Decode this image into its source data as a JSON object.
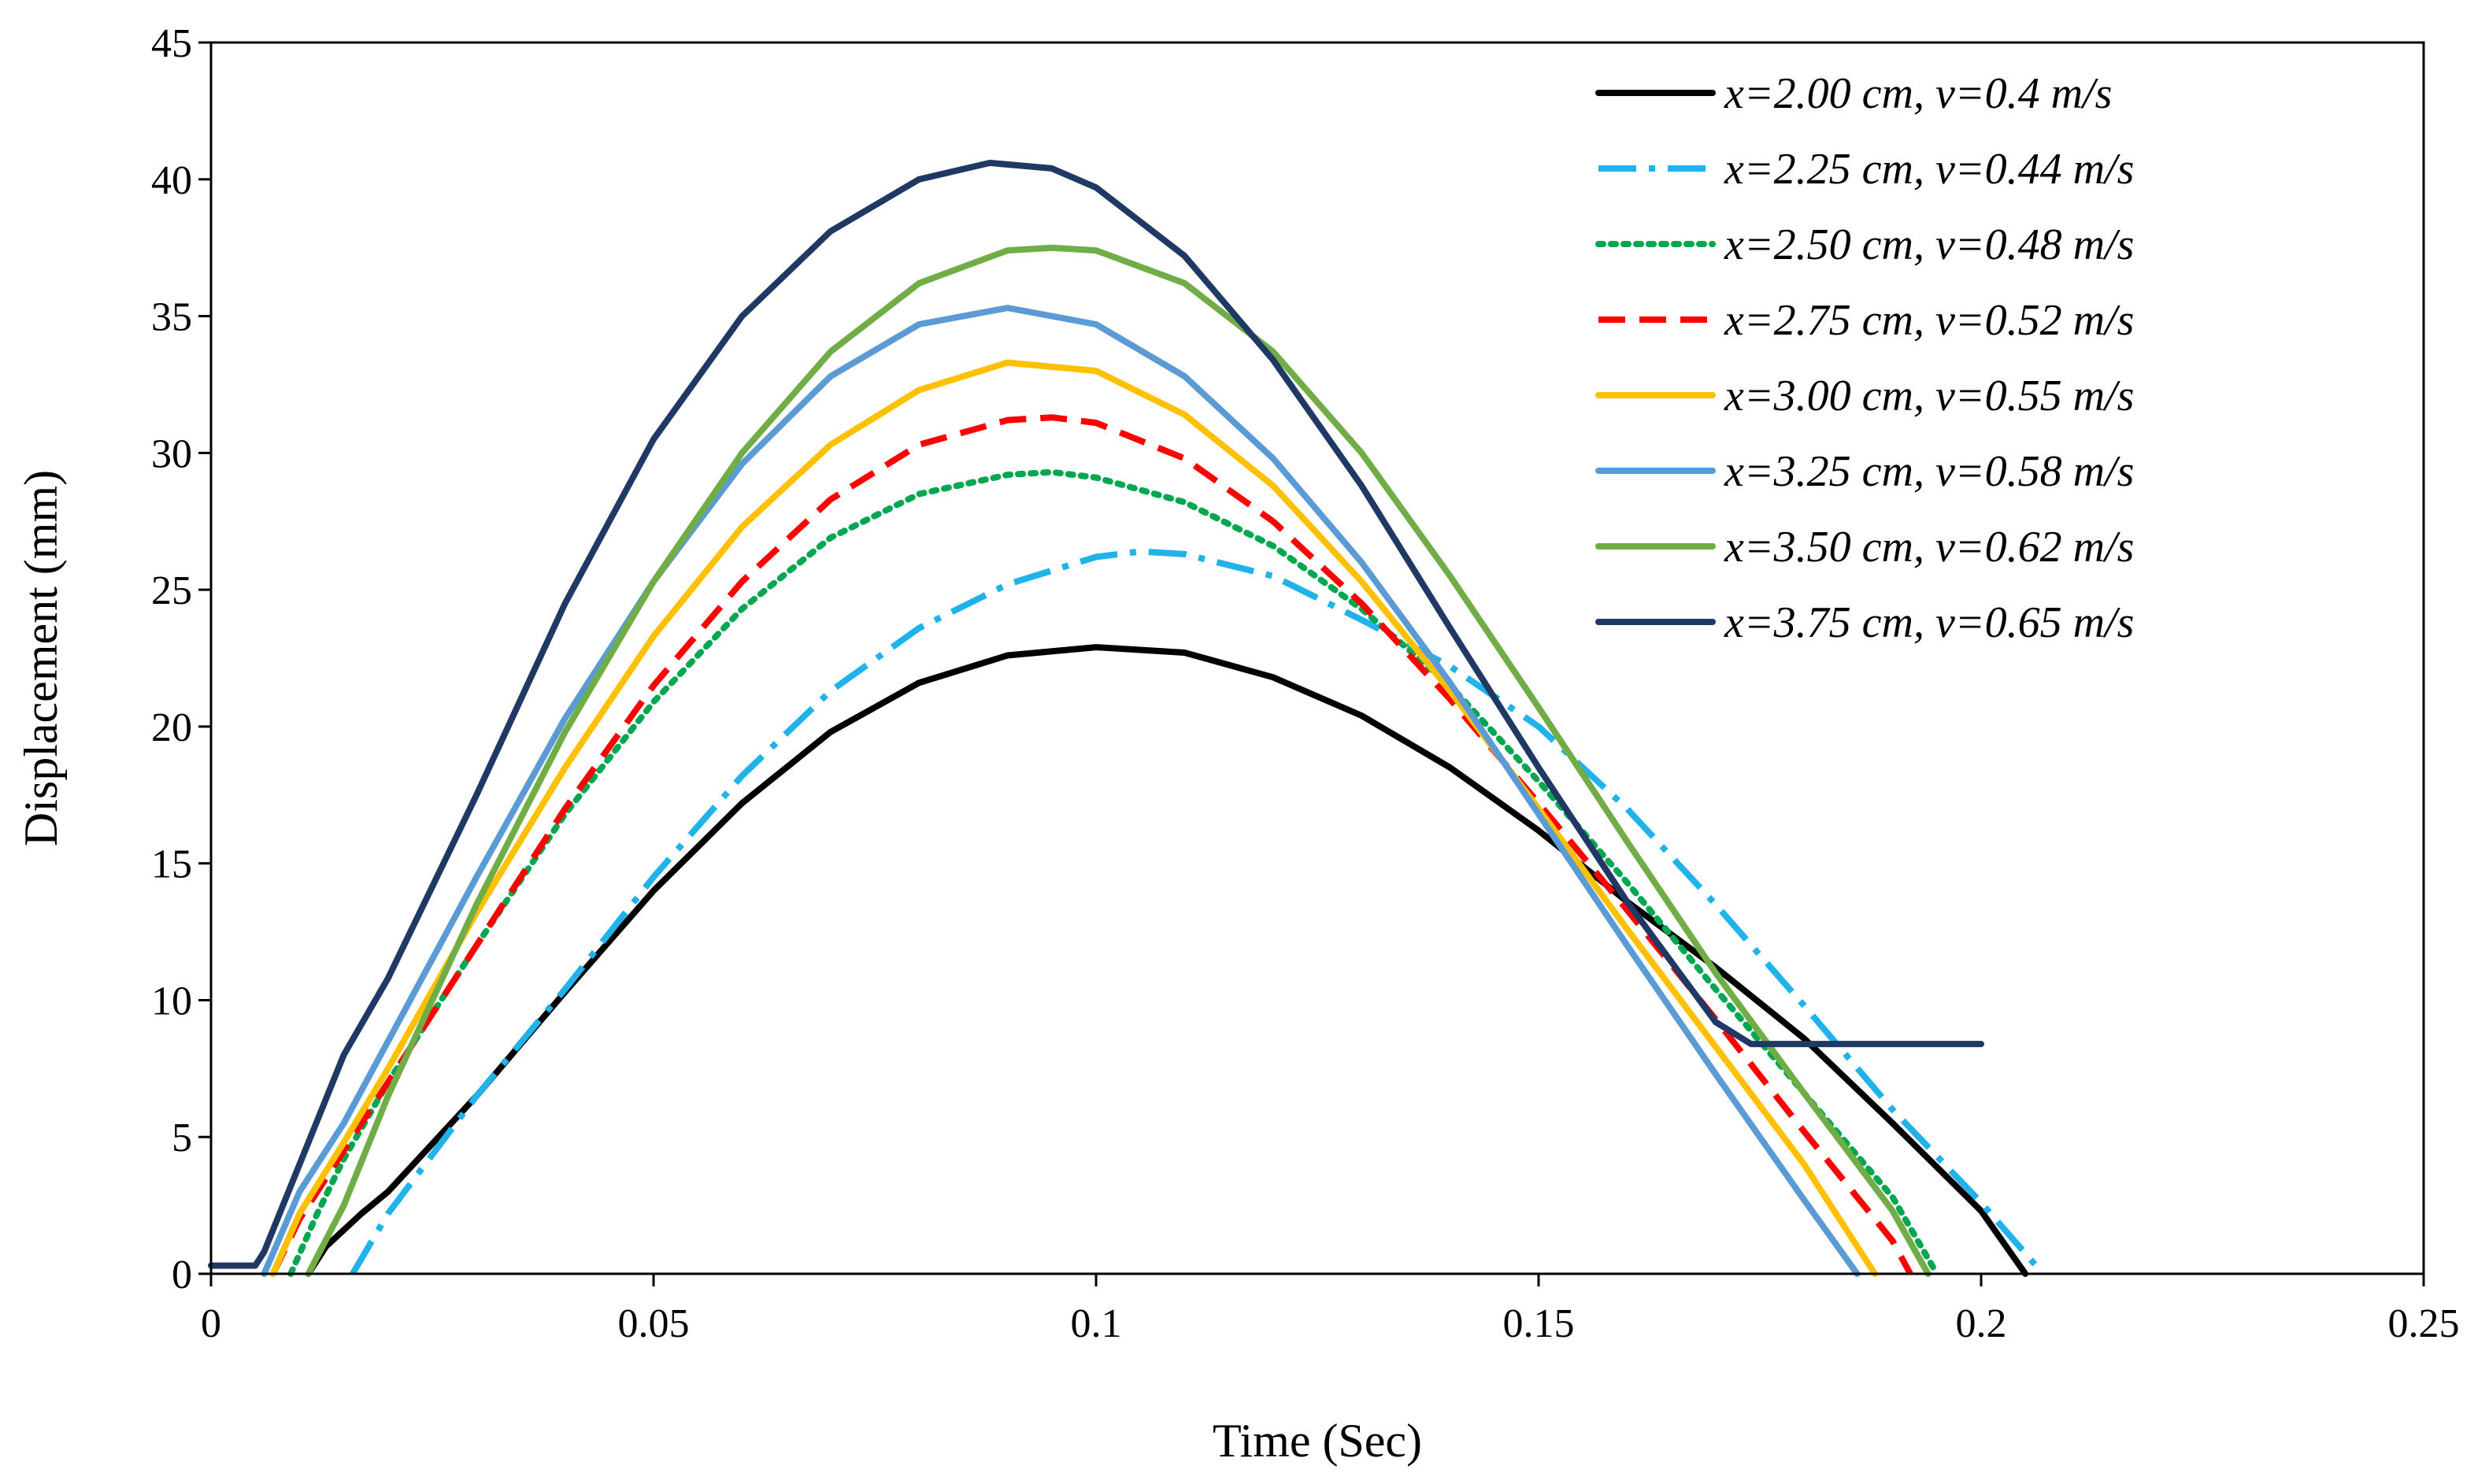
{
  "chart_data": {
    "type": "line",
    "title": "",
    "xlabel": "Time (Sec)",
    "ylabel": "Displacement (mm)",
    "xlim": [
      0,
      0.25
    ],
    "ylim": [
      0,
      45
    ],
    "x_ticks": [
      0,
      0.05,
      0.1,
      0.15,
      0.2,
      0.25
    ],
    "x_tick_labels": [
      "0",
      "0.05",
      "0.1",
      "0.15",
      "0.2",
      "0.25"
    ],
    "y_ticks": [
      0,
      5,
      10,
      15,
      20,
      25,
      30,
      35,
      40,
      45
    ],
    "y_tick_labels": [
      "0",
      "5",
      "10",
      "15",
      "20",
      "25",
      "30",
      "35",
      "40",
      "45"
    ],
    "grid": false,
    "legend_position": "top-right",
    "series": [
      {
        "name": "x=2.00 cm, v=0.4 m/s",
        "color": "#000000",
        "dash": "solid",
        "points": [
          [
            0.011,
            0
          ],
          [
            0.013,
            1.0
          ],
          [
            0.017,
            2.2
          ],
          [
            0.02,
            3.0
          ],
          [
            0.03,
            6.5
          ],
          [
            0.04,
            10.3
          ],
          [
            0.05,
            14.0
          ],
          [
            0.06,
            17.2
          ],
          [
            0.07,
            19.8
          ],
          [
            0.08,
            21.6
          ],
          [
            0.09,
            22.6
          ],
          [
            0.1,
            22.9
          ],
          [
            0.11,
            22.7
          ],
          [
            0.12,
            21.8
          ],
          [
            0.13,
            20.4
          ],
          [
            0.14,
            18.5
          ],
          [
            0.15,
            16.2
          ],
          [
            0.16,
            13.6
          ],
          [
            0.17,
            11.2
          ],
          [
            0.18,
            8.6
          ],
          [
            0.19,
            5.5
          ],
          [
            0.2,
            2.3
          ],
          [
            0.205,
            0
          ]
        ]
      },
      {
        "name": "x=2.25 cm, v=0.44 m/s",
        "color": "#1fb2eb",
        "dash": "dashdot",
        "points": [
          [
            0.016,
            0
          ],
          [
            0.02,
            2.2
          ],
          [
            0.03,
            6.5
          ],
          [
            0.04,
            10.4
          ],
          [
            0.05,
            14.5
          ],
          [
            0.06,
            18.2
          ],
          [
            0.07,
            21.3
          ],
          [
            0.08,
            23.6
          ],
          [
            0.09,
            25.2
          ],
          [
            0.1,
            26.2
          ],
          [
            0.105,
            26.4
          ],
          [
            0.11,
            26.3
          ],
          [
            0.12,
            25.5
          ],
          [
            0.13,
            23.9
          ],
          [
            0.14,
            22.2
          ],
          [
            0.15,
            20.0
          ],
          [
            0.16,
            17.0
          ],
          [
            0.17,
            13.5
          ],
          [
            0.18,
            9.8
          ],
          [
            0.19,
            6.0
          ],
          [
            0.2,
            2.6
          ],
          [
            0.207,
            0
          ]
        ]
      },
      {
        "name": "x=2.50 cm, v=0.48 m/s",
        "color": "#00a650",
        "dash": "dotted",
        "points": [
          [
            0.009,
            0
          ],
          [
            0.012,
            2.2
          ],
          [
            0.015,
            4.2
          ],
          [
            0.02,
            7.0
          ],
          [
            0.03,
            12.0
          ],
          [
            0.04,
            16.8
          ],
          [
            0.05,
            20.9
          ],
          [
            0.06,
            24.3
          ],
          [
            0.07,
            26.9
          ],
          [
            0.08,
            28.5
          ],
          [
            0.09,
            29.2
          ],
          [
            0.095,
            29.3
          ],
          [
            0.1,
            29.1
          ],
          [
            0.11,
            28.2
          ],
          [
            0.12,
            26.6
          ],
          [
            0.13,
            24.3
          ],
          [
            0.14,
            21.5
          ],
          [
            0.15,
            18.0
          ],
          [
            0.16,
            14.3
          ],
          [
            0.17,
            10.4
          ],
          [
            0.18,
            6.6
          ],
          [
            0.19,
            2.8
          ],
          [
            0.195,
            0
          ]
        ]
      },
      {
        "name": "x=2.75 cm, v=0.52 m/s",
        "color": "#ff0000",
        "dash": "dashed",
        "points": [
          [
            0.007,
            0
          ],
          [
            0.01,
            2.0
          ],
          [
            0.015,
            4.5
          ],
          [
            0.02,
            7.0
          ],
          [
            0.03,
            12.0
          ],
          [
            0.04,
            17.0
          ],
          [
            0.05,
            21.5
          ],
          [
            0.06,
            25.3
          ],
          [
            0.07,
            28.3
          ],
          [
            0.08,
            30.3
          ],
          [
            0.09,
            31.2
          ],
          [
            0.095,
            31.3
          ],
          [
            0.1,
            31.1
          ],
          [
            0.11,
            29.8
          ],
          [
            0.12,
            27.5
          ],
          [
            0.13,
            24.5
          ],
          [
            0.14,
            21.0
          ],
          [
            0.15,
            17.2
          ],
          [
            0.16,
            13.3
          ],
          [
            0.17,
            9.3
          ],
          [
            0.18,
            5.2
          ],
          [
            0.19,
            1.2
          ],
          [
            0.192,
            0
          ]
        ]
      },
      {
        "name": "x=3.00 cm, v=0.55 m/s",
        "color": "#ffc000",
        "dash": "solid",
        "points": [
          [
            0.007,
            0
          ],
          [
            0.01,
            2.2
          ],
          [
            0.015,
            4.8
          ],
          [
            0.02,
            7.5
          ],
          [
            0.03,
            13.2
          ],
          [
            0.04,
            18.5
          ],
          [
            0.05,
            23.3
          ],
          [
            0.06,
            27.3
          ],
          [
            0.07,
            30.3
          ],
          [
            0.08,
            32.3
          ],
          [
            0.09,
            33.3
          ],
          [
            0.1,
            33.0
          ],
          [
            0.11,
            31.4
          ],
          [
            0.12,
            28.8
          ],
          [
            0.13,
            25.3
          ],
          [
            0.14,
            21.3
          ],
          [
            0.15,
            17.0
          ],
          [
            0.16,
            12.6
          ],
          [
            0.17,
            8.3
          ],
          [
            0.18,
            4.0
          ],
          [
            0.188,
            0
          ]
        ]
      },
      {
        "name": "x=3.25 cm, v=0.58 m/s",
        "color": "#5b9bd5",
        "dash": "solid",
        "points": [
          [
            0.006,
            0
          ],
          [
            0.01,
            3.0
          ],
          [
            0.015,
            5.5
          ],
          [
            0.02,
            8.5
          ],
          [
            0.03,
            14.5
          ],
          [
            0.04,
            20.3
          ],
          [
            0.05,
            25.3
          ],
          [
            0.06,
            29.6
          ],
          [
            0.07,
            32.8
          ],
          [
            0.08,
            34.7
          ],
          [
            0.09,
            35.3
          ],
          [
            0.1,
            34.7
          ],
          [
            0.11,
            32.8
          ],
          [
            0.12,
            29.8
          ],
          [
            0.13,
            26.0
          ],
          [
            0.14,
            21.6
          ],
          [
            0.15,
            16.8
          ],
          [
            0.16,
            12.0
          ],
          [
            0.17,
            7.3
          ],
          [
            0.18,
            2.7
          ],
          [
            0.186,
            0
          ]
        ]
      },
      {
        "name": "x=3.50 cm, v=0.62 m/s",
        "color": "#70ad47",
        "dash": "solid",
        "points": [
          [
            0.011,
            0
          ],
          [
            0.015,
            2.5
          ],
          [
            0.02,
            6.5
          ],
          [
            0.03,
            13.5
          ],
          [
            0.04,
            19.8
          ],
          [
            0.05,
            25.3
          ],
          [
            0.06,
            30.0
          ],
          [
            0.07,
            33.7
          ],
          [
            0.08,
            36.2
          ],
          [
            0.09,
            37.4
          ],
          [
            0.095,
            37.5
          ],
          [
            0.1,
            37.4
          ],
          [
            0.11,
            36.2
          ],
          [
            0.12,
            33.7
          ],
          [
            0.13,
            30.0
          ],
          [
            0.14,
            25.5
          ],
          [
            0.15,
            20.7
          ],
          [
            0.16,
            15.8
          ],
          [
            0.17,
            11.0
          ],
          [
            0.18,
            6.6
          ],
          [
            0.19,
            2.3
          ],
          [
            0.194,
            0
          ]
        ]
      },
      {
        "name": "x=3.75 cm, v=0.65 m/s",
        "color": "#203864",
        "dash": "solid",
        "points": [
          [
            0,
            0.3
          ],
          [
            0.005,
            0.3
          ],
          [
            0.006,
            0.8
          ],
          [
            0.01,
            4.0
          ],
          [
            0.015,
            8.0
          ],
          [
            0.02,
            10.8
          ],
          [
            0.03,
            17.5
          ],
          [
            0.04,
            24.5
          ],
          [
            0.05,
            30.5
          ],
          [
            0.06,
            35.0
          ],
          [
            0.07,
            38.1
          ],
          [
            0.08,
            40.0
          ],
          [
            0.088,
            40.6
          ],
          [
            0.095,
            40.4
          ],
          [
            0.1,
            39.7
          ],
          [
            0.11,
            37.2
          ],
          [
            0.12,
            33.4
          ],
          [
            0.13,
            28.8
          ],
          [
            0.14,
            23.6
          ],
          [
            0.15,
            18.5
          ],
          [
            0.16,
            13.6
          ],
          [
            0.17,
            9.2
          ],
          [
            0.174,
            8.4
          ],
          [
            0.2,
            8.4
          ]
        ]
      }
    ]
  }
}
